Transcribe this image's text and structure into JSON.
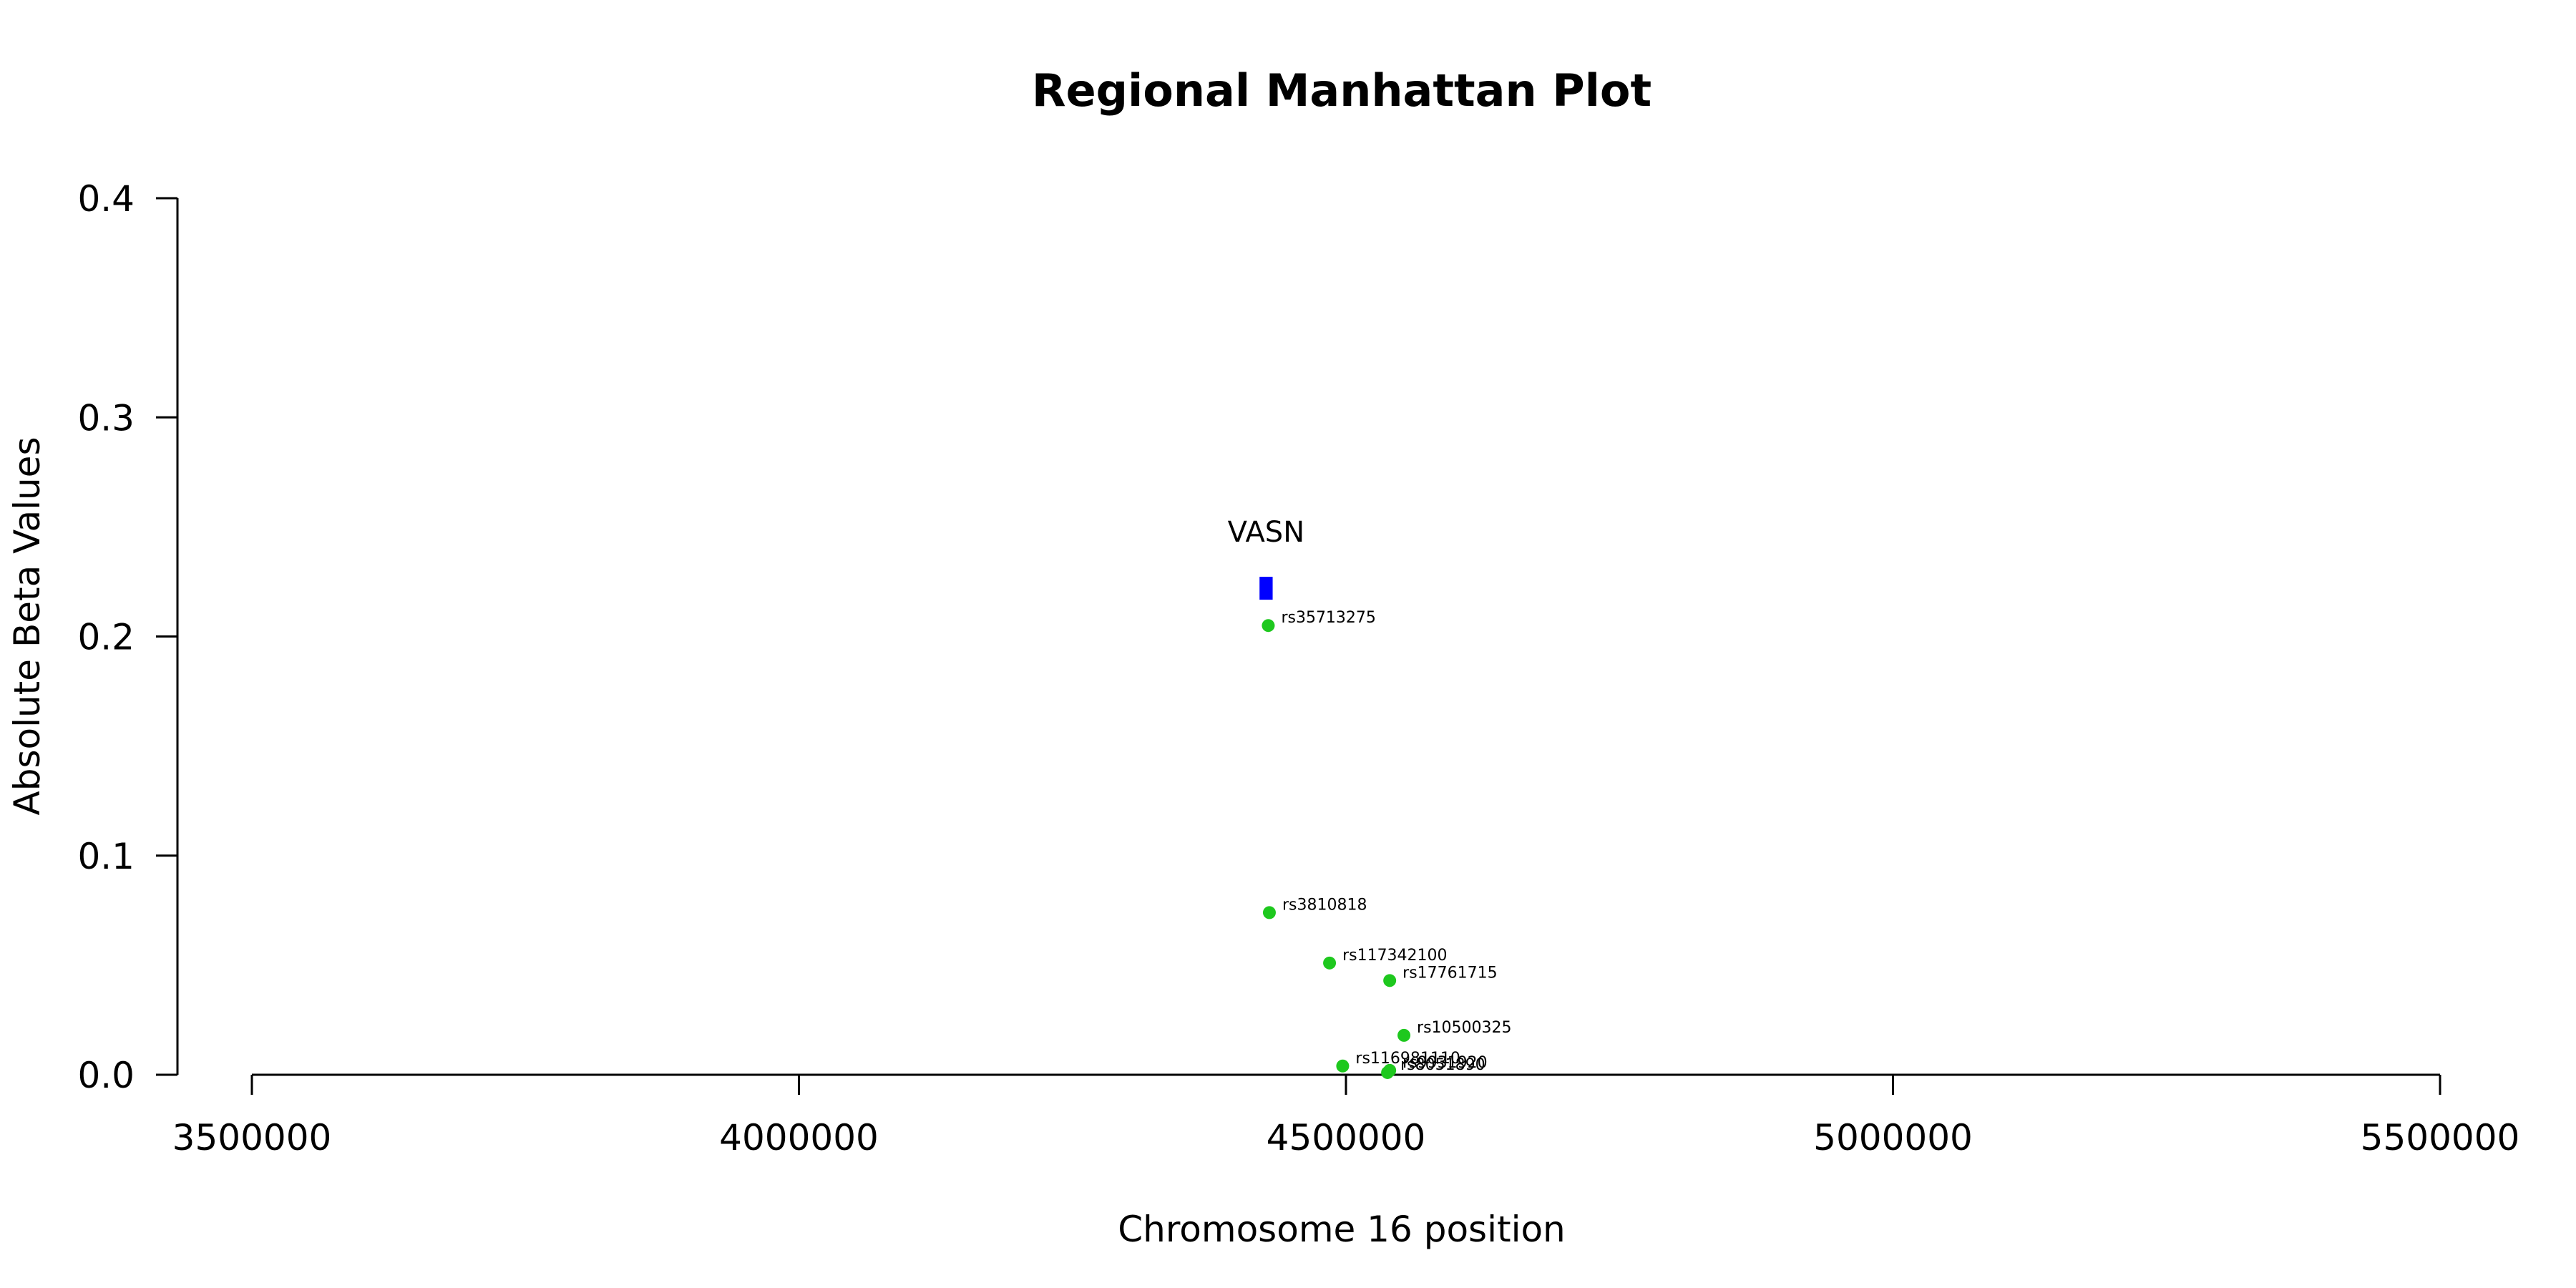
{
  "chart_data": {
    "type": "scatter",
    "title": "Regional Manhattan Plot",
    "xlabel": "Chromosome 16 position",
    "ylabel": "Absolute Beta Values",
    "xlim": [
      3500000,
      5500000
    ],
    "ylim": [
      0,
      0.4
    ],
    "x_ticks": [
      3500000,
      4000000,
      4500000,
      5000000,
      5500000
    ],
    "x_tick_labels": [
      "3500000",
      "4000000",
      "4500000",
      "5000000",
      "5500000"
    ],
    "y_ticks": [
      0,
      0.1,
      0.2,
      0.3,
      0.4
    ],
    "y_tick_labels": [
      "0.0",
      "0.1",
      "0.2",
      "0.3",
      "0.4"
    ],
    "grid": false,
    "colors": {
      "snp": "#1ec81e",
      "gene": "#0000ff",
      "axis": "#000000"
    },
    "genes": [
      {
        "name": "VASN",
        "start": 4421000,
        "end": 4433000,
        "y": 0.222
      }
    ],
    "points": [
      {
        "label": "rs35713275",
        "x": 4429000,
        "y": 0.205
      },
      {
        "label": "rs3810818",
        "x": 4430000,
        "y": 0.074
      },
      {
        "label": "rs117342100",
        "x": 4485000,
        "y": 0.051
      },
      {
        "label": "rs17761715",
        "x": 4540000,
        "y": 0.043
      },
      {
        "label": "rs10500325",
        "x": 4553000,
        "y": 0.018
      },
      {
        "label": "rs116981110",
        "x": 4497000,
        "y": 0.004
      },
      {
        "label": "rs9931920",
        "x": 4540000,
        "y": 0.002
      },
      {
        "label": "rs8051890",
        "x": 4538000,
        "y": 0.001
      }
    ]
  }
}
